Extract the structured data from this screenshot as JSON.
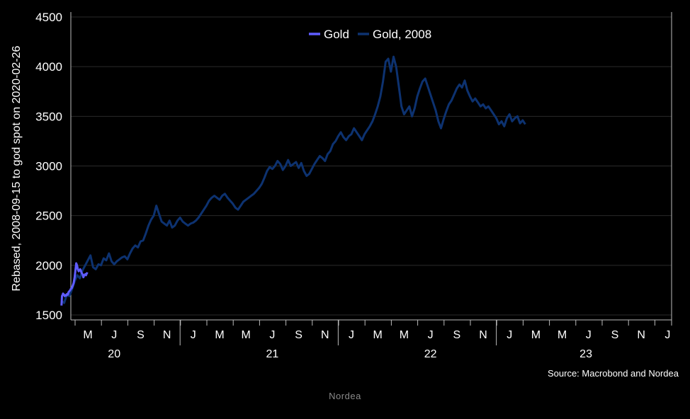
{
  "chart_data": {
    "type": "line",
    "ylabel": "Rebased, 2008-09-15 to god spot on 2020-02-26",
    "ylim": [
      1450,
      4550
    ],
    "yticks": [
      1500,
      2000,
      2500,
      3000,
      3500,
      4000,
      4500
    ],
    "x_month_ticks": [
      "M",
      "J",
      "S",
      "N",
      "J",
      "M",
      "M",
      "J",
      "S",
      "N",
      "J",
      "M",
      "M",
      "J",
      "S",
      "N",
      "J",
      "M",
      "M",
      "J",
      "S",
      "N",
      "J"
    ],
    "x_year_labels": [
      "20",
      "21",
      "22",
      "23"
    ],
    "grid": true,
    "legend_position": "top-center",
    "series": [
      {
        "name": "Gold",
        "color": "#5f5cff",
        "points": [
          [
            0.0,
            1595
          ],
          [
            0.02,
            1690
          ],
          [
            0.04,
            1700
          ],
          [
            0.06,
            1715
          ],
          [
            0.09,
            1705
          ],
          [
            0.12,
            1690
          ],
          [
            0.15,
            1700
          ],
          [
            0.18,
            1695
          ],
          [
            0.21,
            1710
          ],
          [
            0.24,
            1705
          ],
          [
            0.27,
            1730
          ],
          [
            0.3,
            1740
          ],
          [
            0.33,
            1750
          ],
          [
            0.36,
            1765
          ],
          [
            0.39,
            1770
          ],
          [
            0.42,
            1790
          ],
          [
            0.46,
            1820
          ],
          [
            0.5,
            1880
          ],
          [
            0.53,
            1950
          ],
          [
            0.56,
            2020
          ],
          [
            0.59,
            2000
          ],
          [
            0.62,
            1960
          ],
          [
            0.65,
            1940
          ],
          [
            0.68,
            1950
          ],
          [
            0.71,
            1960
          ],
          [
            0.74,
            1940
          ],
          [
            0.77,
            1920
          ],
          [
            0.8,
            1910
          ],
          [
            0.83,
            1880
          ],
          [
            0.86,
            1900
          ],
          [
            0.9,
            1910
          ],
          [
            0.93,
            1900
          ],
          [
            0.96,
            1920
          ],
          [
            1.0,
            1915
          ]
        ]
      },
      {
        "name": "Gold, 2008",
        "color": "#0d3270",
        "points": [
          [
            0.0,
            1640
          ],
          [
            0.1,
            1620
          ],
          [
            0.2,
            1700
          ],
          [
            0.3,
            1690
          ],
          [
            0.4,
            1760
          ],
          [
            0.5,
            1840
          ],
          [
            0.6,
            1900
          ],
          [
            0.7,
            1870
          ],
          [
            0.8,
            1950
          ],
          [
            0.9,
            2000
          ],
          [
            1.0,
            2050
          ],
          [
            1.1,
            2100
          ],
          [
            1.2,
            1980
          ],
          [
            1.3,
            1960
          ],
          [
            1.4,
            2010
          ],
          [
            1.5,
            2000
          ],
          [
            1.6,
            2070
          ],
          [
            1.7,
            2050
          ],
          [
            1.8,
            2120
          ],
          [
            1.9,
            2040
          ],
          [
            2.0,
            2010
          ],
          [
            2.1,
            2040
          ],
          [
            2.2,
            2060
          ],
          [
            2.3,
            2080
          ],
          [
            2.4,
            2090
          ],
          [
            2.5,
            2060
          ],
          [
            2.6,
            2120
          ],
          [
            2.7,
            2170
          ],
          [
            2.8,
            2200
          ],
          [
            2.9,
            2180
          ],
          [
            3.0,
            2240
          ],
          [
            3.1,
            2250
          ],
          [
            3.2,
            2320
          ],
          [
            3.3,
            2400
          ],
          [
            3.4,
            2460
          ],
          [
            3.5,
            2500
          ],
          [
            3.6,
            2600
          ],
          [
            3.7,
            2520
          ],
          [
            3.8,
            2440
          ],
          [
            3.9,
            2420
          ],
          [
            4.0,
            2400
          ],
          [
            4.1,
            2450
          ],
          [
            4.2,
            2380
          ],
          [
            4.3,
            2400
          ],
          [
            4.4,
            2450
          ],
          [
            4.5,
            2480
          ],
          [
            4.6,
            2440
          ],
          [
            4.7,
            2420
          ],
          [
            4.8,
            2400
          ],
          [
            4.9,
            2420
          ],
          [
            5.0,
            2430
          ],
          [
            5.1,
            2450
          ],
          [
            5.2,
            2480
          ],
          [
            5.3,
            2520
          ],
          [
            5.4,
            2560
          ],
          [
            5.5,
            2600
          ],
          [
            5.6,
            2650
          ],
          [
            5.7,
            2680
          ],
          [
            5.8,
            2700
          ],
          [
            5.9,
            2680
          ],
          [
            6.0,
            2660
          ],
          [
            6.1,
            2700
          ],
          [
            6.2,
            2720
          ],
          [
            6.3,
            2680
          ],
          [
            6.4,
            2650
          ],
          [
            6.5,
            2620
          ],
          [
            6.6,
            2580
          ],
          [
            6.7,
            2560
          ],
          [
            6.8,
            2600
          ],
          [
            6.9,
            2640
          ],
          [
            7.0,
            2660
          ],
          [
            7.1,
            2680
          ],
          [
            7.2,
            2700
          ],
          [
            7.3,
            2720
          ],
          [
            7.4,
            2750
          ],
          [
            7.5,
            2780
          ],
          [
            7.6,
            2820
          ],
          [
            7.7,
            2880
          ],
          [
            7.8,
            2950
          ],
          [
            7.9,
            2990
          ],
          [
            8.0,
            2970
          ],
          [
            8.1,
            3000
          ],
          [
            8.2,
            3050
          ],
          [
            8.3,
            3020
          ],
          [
            8.4,
            2960
          ],
          [
            8.5,
            3000
          ],
          [
            8.6,
            3060
          ],
          [
            8.7,
            3000
          ],
          [
            8.8,
            3020
          ],
          [
            8.9,
            3040
          ],
          [
            9.0,
            2980
          ],
          [
            9.1,
            3030
          ],
          [
            9.2,
            2950
          ],
          [
            9.3,
            2900
          ],
          [
            9.4,
            2920
          ],
          [
            9.5,
            2970
          ],
          [
            9.6,
            3020
          ],
          [
            9.7,
            3060
          ],
          [
            9.8,
            3100
          ],
          [
            9.9,
            3080
          ],
          [
            10.0,
            3050
          ],
          [
            10.1,
            3120
          ],
          [
            10.2,
            3150
          ],
          [
            10.3,
            3220
          ],
          [
            10.4,
            3250
          ],
          [
            10.5,
            3300
          ],
          [
            10.6,
            3340
          ],
          [
            10.7,
            3290
          ],
          [
            10.8,
            3260
          ],
          [
            10.9,
            3300
          ],
          [
            11.0,
            3320
          ],
          [
            11.1,
            3380
          ],
          [
            11.2,
            3340
          ],
          [
            11.3,
            3300
          ],
          [
            11.4,
            3260
          ],
          [
            11.5,
            3320
          ],
          [
            11.6,
            3360
          ],
          [
            11.7,
            3400
          ],
          [
            11.8,
            3450
          ],
          [
            11.9,
            3520
          ],
          [
            12.0,
            3600
          ],
          [
            12.1,
            3700
          ],
          [
            12.2,
            3850
          ],
          [
            12.3,
            4050
          ],
          [
            12.4,
            4080
          ],
          [
            12.5,
            3950
          ],
          [
            12.6,
            4100
          ],
          [
            12.7,
            4000
          ],
          [
            12.8,
            3800
          ],
          [
            12.9,
            3600
          ],
          [
            13.0,
            3520
          ],
          [
            13.1,
            3560
          ],
          [
            13.2,
            3600
          ],
          [
            13.3,
            3500
          ],
          [
            13.4,
            3580
          ],
          [
            13.5,
            3700
          ],
          [
            13.6,
            3780
          ],
          [
            13.7,
            3850
          ],
          [
            13.8,
            3880
          ],
          [
            13.9,
            3800
          ],
          [
            14.0,
            3720
          ],
          [
            14.1,
            3640
          ],
          [
            14.2,
            3560
          ],
          [
            14.3,
            3450
          ],
          [
            14.4,
            3380
          ],
          [
            14.5,
            3470
          ],
          [
            14.6,
            3550
          ],
          [
            14.7,
            3620
          ],
          [
            14.8,
            3660
          ],
          [
            14.9,
            3720
          ],
          [
            15.0,
            3780
          ],
          [
            15.1,
            3820
          ],
          [
            15.2,
            3790
          ],
          [
            15.3,
            3860
          ],
          [
            15.4,
            3760
          ],
          [
            15.5,
            3700
          ],
          [
            15.6,
            3650
          ],
          [
            15.7,
            3680
          ],
          [
            15.8,
            3640
          ],
          [
            15.9,
            3600
          ],
          [
            16.0,
            3620
          ],
          [
            16.1,
            3580
          ],
          [
            16.2,
            3600
          ],
          [
            16.3,
            3560
          ],
          [
            16.4,
            3520
          ],
          [
            16.5,
            3480
          ],
          [
            16.6,
            3420
          ],
          [
            16.7,
            3450
          ],
          [
            16.8,
            3400
          ],
          [
            16.9,
            3480
          ],
          [
            17.0,
            3520
          ],
          [
            17.1,
            3450
          ],
          [
            17.2,
            3480
          ],
          [
            17.3,
            3500
          ],
          [
            17.4,
            3430
          ],
          [
            17.5,
            3460
          ],
          [
            17.6,
            3420
          ]
        ]
      }
    ]
  },
  "source_text": "Source: Macrobond and Nordea",
  "footer_text": "Nordea"
}
